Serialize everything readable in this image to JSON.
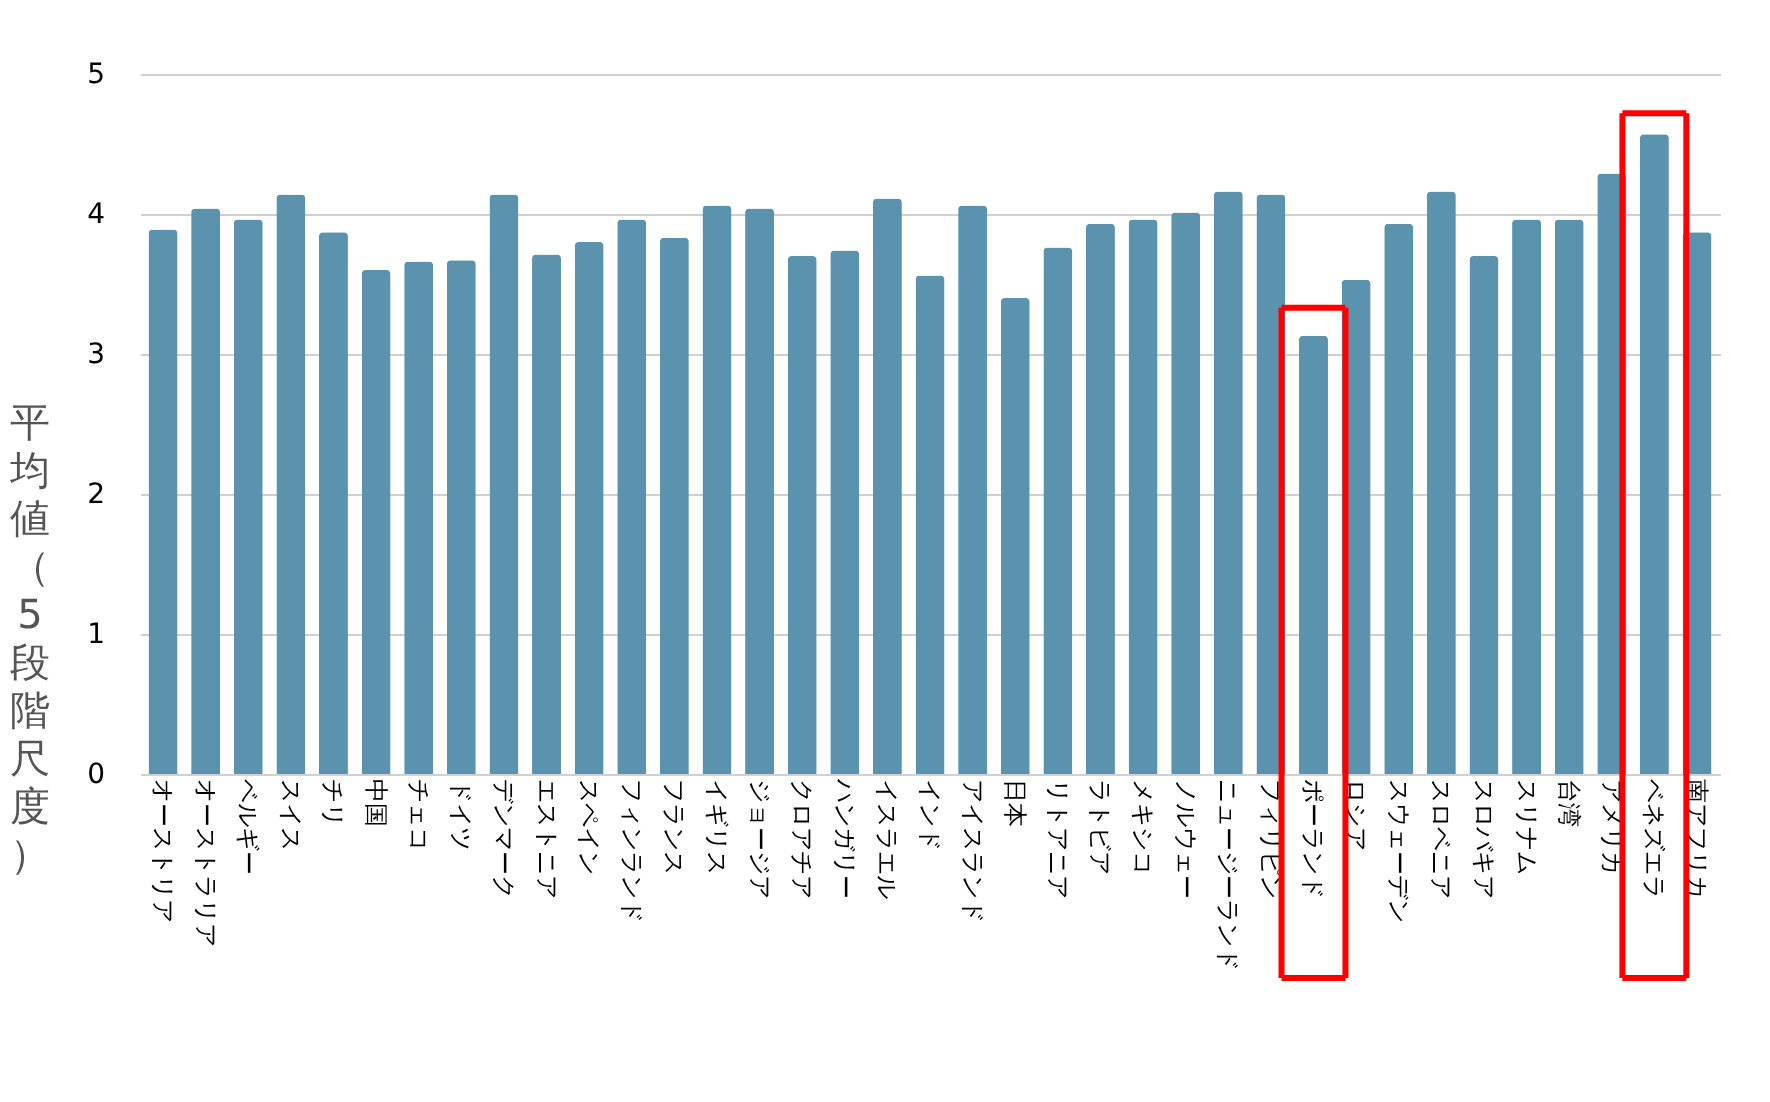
{
  "chart_data": {
    "type": "bar",
    "ylabel": "平均値（5段階尺度）",
    "categories": [
      "オーストリア",
      "オーストラリア",
      "ベルギー",
      "スイス",
      "チリ",
      "中国",
      "チェコ",
      "ドイツ",
      "デンマーク",
      "エストニア",
      "スペイン",
      "フィンランド",
      "フランス",
      "イギリス",
      "ジョージア",
      "クロアチア",
      "ハンガリー",
      "イスラエル",
      "インド",
      "アイスランド",
      "日本",
      "リトアニア",
      "ラトビア",
      "メキシコ",
      "ノルウェー",
      "ニュージーランド",
      "フィリピン",
      "ポーランド",
      "ロシア",
      "スウェーデン",
      "スロベニア",
      "スロバキア",
      "スリナム",
      "台湾",
      "アメリカ",
      "ベネズエラ",
      "南アフリカ"
    ],
    "values": [
      3.89,
      4.04,
      3.96,
      4.14,
      3.87,
      3.6,
      3.66,
      3.67,
      4.14,
      3.71,
      3.8,
      3.96,
      3.83,
      4.06,
      4.04,
      3.7,
      3.74,
      4.11,
      3.56,
      4.06,
      3.4,
      3.76,
      3.93,
      3.96,
      4.01,
      4.16,
      4.14,
      3.13,
      3.53,
      3.93,
      4.16,
      3.7,
      3.96,
      3.96,
      4.29,
      4.57,
      3.87
    ],
    "color": "#5b93ae",
    "ylim": [
      0,
      5
    ],
    "yticks": [
      0,
      1,
      2,
      3,
      4,
      5
    ],
    "grid": "y"
  }
}
